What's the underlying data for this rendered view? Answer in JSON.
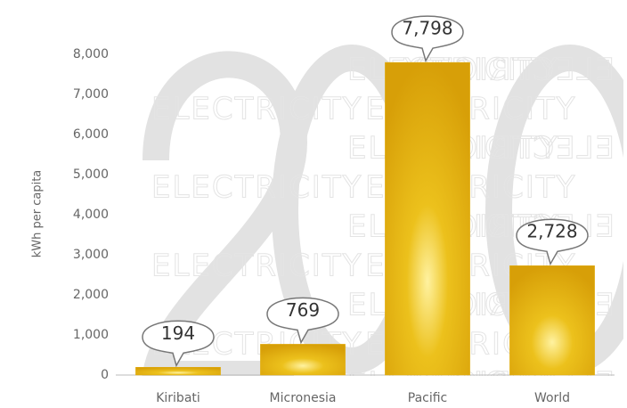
{
  "chart_data": {
    "type": "bar",
    "y_label": "kWh per capita",
    "watermark": "ELECTRICITY",
    "categories": [
      "Kiribati",
      "Micronesia",
      "Pacific",
      "World"
    ],
    "values": [
      194,
      769,
      7798,
      2728
    ],
    "value_labels": [
      "194",
      "769",
      "7,798",
      "2,728"
    ],
    "color": "#e3ad0c",
    "ylim": [
      0,
      8000
    ],
    "yticks": [
      0,
      {
        "value": 1000,
        "label": "1,000"
      },
      {
        "value": 2000,
        "label": "2,000"
      },
      {
        "value": 3000,
        "label": "3,000"
      },
      {
        "value": 4000,
        "label": "4,000"
      },
      {
        "value": 5000,
        "label": "5,000"
      },
      {
        "value": 6000,
        "label": "6,000"
      },
      {
        "value": 7000,
        "label": "7,000"
      },
      {
        "value": 8000,
        "label": "8,000"
      }
    ]
  }
}
